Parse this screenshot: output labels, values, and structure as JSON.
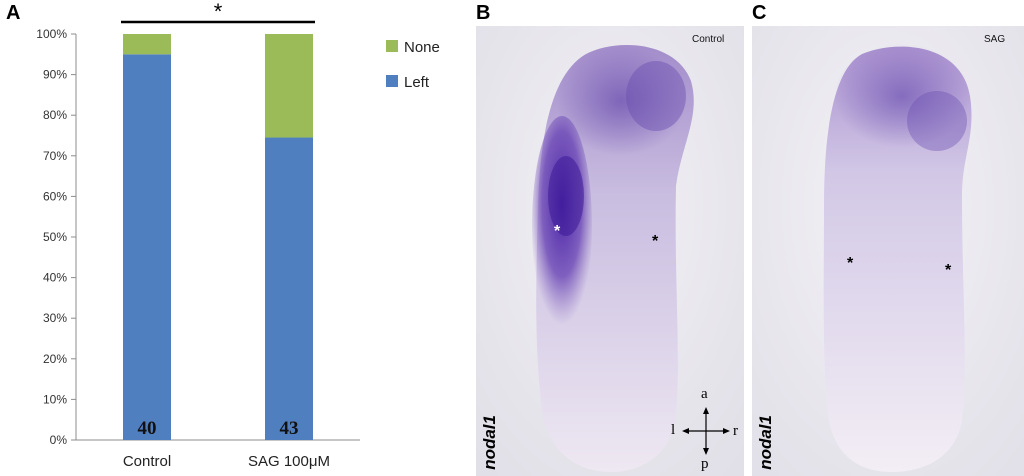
{
  "panels": {
    "a_letter": "A",
    "b_letter": "B",
    "c_letter": "C"
  },
  "chart_data": {
    "type": "bar",
    "stacked": true,
    "categories": [
      "Control",
      "SAG 100μM"
    ],
    "series": [
      {
        "name": "Left",
        "values": [
          95,
          74.5
        ],
        "color": "#4f7fbf"
      },
      {
        "name": "None",
        "values": [
          5,
          25.5
        ],
        "color": "#9bbb59"
      }
    ],
    "n_labels": [
      "40",
      "43"
    ],
    "y_ticks": [
      "0%",
      "10%",
      "20%",
      "30%",
      "40%",
      "50%",
      "60%",
      "70%",
      "80%",
      "90%",
      "100%"
    ],
    "ylim": [
      0,
      100
    ],
    "legend_placement": "right",
    "significance": "*",
    "grid": false
  },
  "panel_b": {
    "condition": "Control",
    "gene": "nodal1",
    "marker_left": "*",
    "marker_right": "*",
    "axis": {
      "a": "a",
      "p": "p",
      "l": "l",
      "r": "r"
    }
  },
  "panel_c": {
    "condition": "SAG",
    "gene": "nodal1",
    "marker_left": "*",
    "marker_right": "*"
  }
}
